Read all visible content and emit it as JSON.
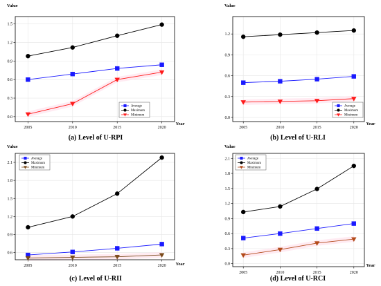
{
  "chart_data": [
    {
      "id": "a",
      "type": "line",
      "title": "(a) Level of U-RPI",
      "xlabel": "Year",
      "ylabel": "Value",
      "x": [
        2005,
        2010,
        2015,
        2020
      ],
      "xticks": [
        2005,
        2010,
        2015,
        2020
      ],
      "yticks": [
        "0.0",
        "0.3",
        "0.6",
        "0.9",
        "1.2",
        "1.5"
      ],
      "ylim": [
        -0.08,
        1.62
      ],
      "grid": true,
      "legend_position": "bottom-right",
      "series": [
        {
          "name": "Average",
          "color": "#1a1aff",
          "marker": "square",
          "values": [
            0.6,
            0.69,
            0.78,
            0.84
          ]
        },
        {
          "name": "Maximum",
          "color": "#000000",
          "marker": "circle",
          "values": [
            0.98,
            1.12,
            1.31,
            1.49
          ]
        },
        {
          "name": "Minimum",
          "color": "#ff1a1a",
          "marker": "triangle-down",
          "values": [
            0.04,
            0.21,
            0.6,
            0.72
          ]
        }
      ]
    },
    {
      "id": "b",
      "type": "line",
      "title": "(b) Level of U-RLI",
      "xlabel": "Year",
      "ylabel": "Value",
      "x": [
        2005,
        2010,
        2015,
        2020
      ],
      "xticks": [
        2005,
        2010,
        2015,
        2020
      ],
      "yticks": [
        "0.0",
        "0.3",
        "0.6",
        "0.9",
        "1.2"
      ],
      "ylim": [
        -0.06,
        1.45
      ],
      "grid": true,
      "legend_position": "bottom-right",
      "series": [
        {
          "name": "Average",
          "color": "#1a1aff",
          "marker": "square",
          "values": [
            0.5,
            0.52,
            0.55,
            0.59
          ]
        },
        {
          "name": "Maximum",
          "color": "#000000",
          "marker": "circle",
          "values": [
            1.16,
            1.19,
            1.22,
            1.25
          ]
        },
        {
          "name": "Minimum",
          "color": "#ff1a1a",
          "marker": "triangle-down",
          "values": [
            0.22,
            0.23,
            0.24,
            0.27
          ]
        }
      ]
    },
    {
      "id": "c",
      "type": "line",
      "title": "(c) Level of U-RII",
      "xlabel": "Year",
      "ylabel": "Value",
      "x": [
        2005,
        2010,
        2015,
        2020
      ],
      "xticks": [
        2005,
        2010,
        2015,
        2020
      ],
      "yticks": [
        "0.6",
        "0.9",
        "1.2",
        "1.5",
        "1.8",
        "2.1"
      ],
      "ylim": [
        0.48,
        2.25
      ],
      "grid": true,
      "legend_position": "top-left",
      "series": [
        {
          "name": "Average",
          "color": "#1a1aff",
          "marker": "square",
          "values": [
            0.56,
            0.61,
            0.67,
            0.74
          ]
        },
        {
          "name": "Maximum",
          "color": "#000000",
          "marker": "circle",
          "values": [
            1.02,
            1.2,
            1.58,
            2.18
          ]
        },
        {
          "name": "Minimum",
          "color": "#7a4a1a",
          "marker": "triangle-down",
          "values": [
            0.51,
            0.52,
            0.53,
            0.56
          ]
        }
      ]
    },
    {
      "id": "d",
      "type": "line",
      "title": "(d) Level of U-RCI",
      "xlabel": "Year",
      "ylabel": "Value",
      "x": [
        2005,
        2010,
        2015,
        2020
      ],
      "xticks": [
        2005,
        2010,
        2015,
        2020
      ],
      "yticks": [
        "0.0",
        "0.3",
        "0.6",
        "0.9",
        "1.2",
        "1.5",
        "1.8",
        "2.1"
      ],
      "ylim": [
        -0.06,
        2.2
      ],
      "grid": true,
      "legend_position": "top-left",
      "series": [
        {
          "name": "Average",
          "color": "#1a1aff",
          "marker": "square",
          "values": [
            0.51,
            0.6,
            0.7,
            0.8
          ]
        },
        {
          "name": "Maximum",
          "color": "#000000",
          "marker": "circle",
          "values": [
            1.03,
            1.14,
            1.49,
            1.95
          ]
        },
        {
          "name": "Minimum",
          "color": "#b34a1a",
          "marker": "triangle-down",
          "values": [
            0.17,
            0.28,
            0.41,
            0.49
          ]
        }
      ]
    }
  ]
}
